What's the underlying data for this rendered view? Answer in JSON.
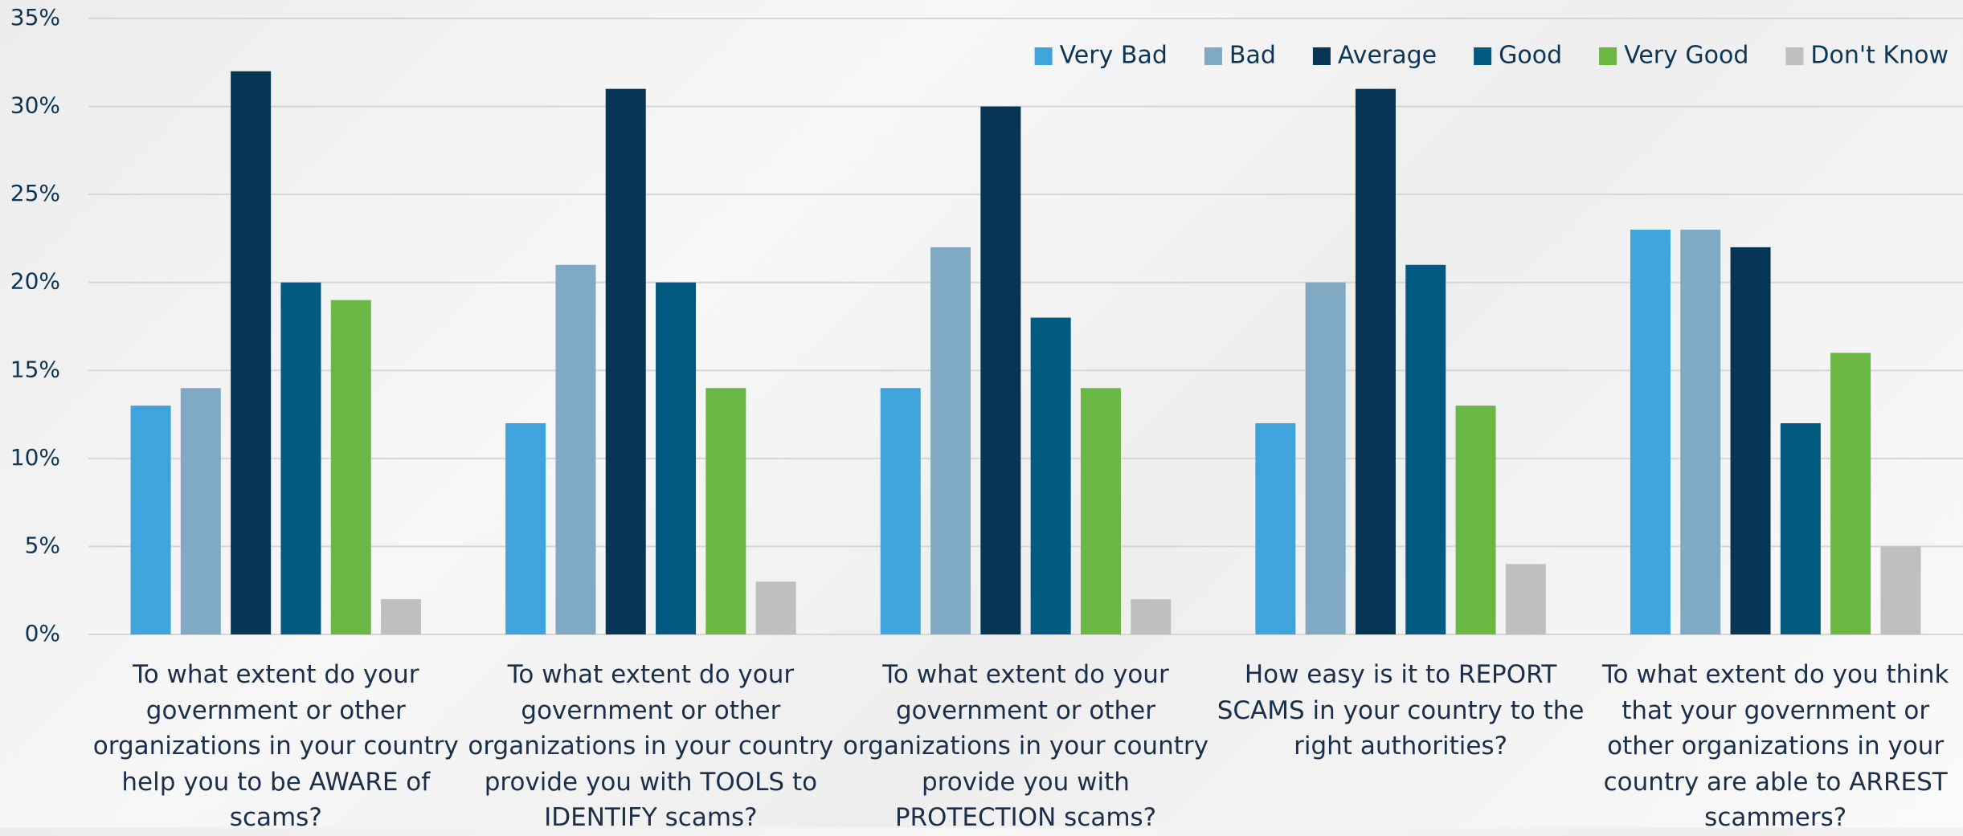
{
  "chart_data": {
    "type": "bar",
    "categories": [
      "To what extent do your government or other organizations in your country help you to be AWARE of scams?",
      "To what extent do your government or other organizations in your country provide you with TOOLS to IDENTIFY scams?",
      "To what extent do your government or other organizations in your country provide you with PROTECTION scams?",
      "How easy is it to REPORT SCAMS in your country to the right authorities?",
      "To what extent do you think that your government or other organizations in your country are able to ARREST scammers?"
    ],
    "series": [
      {
        "name": "Very Bad",
        "color": "#3fa3dc",
        "values": [
          13,
          12,
          14,
          12,
          23
        ]
      },
      {
        "name": "Bad",
        "color": "#80aac4",
        "values": [
          14,
          21,
          22,
          20,
          23
        ]
      },
      {
        "name": "Average",
        "color": "#063556",
        "values": [
          32,
          31,
          30,
          31,
          22
        ]
      },
      {
        "name": "Good",
        "color": "#025a80",
        "values": [
          20,
          20,
          18,
          21,
          12
        ]
      },
      {
        "name": "Very Good",
        "color": "#6ab744",
        "values": [
          19,
          14,
          14,
          13,
          16
        ]
      },
      {
        "name": "Don't Know",
        "color": "#bfbfbf",
        "values": [
          2,
          3,
          2,
          4,
          5
        ]
      }
    ],
    "ylim": [
      0,
      35
    ],
    "yticks": [
      {
        "value": 0,
        "label": "0%"
      },
      {
        "value": 5,
        "label": "5%"
      },
      {
        "value": 10,
        "label": "10%"
      },
      {
        "value": 15,
        "label": "15%"
      },
      {
        "value": 20,
        "label": "20%"
      },
      {
        "value": 25,
        "label": "25%"
      },
      {
        "value": 30,
        "label": "30%"
      },
      {
        "value": 35,
        "label": "35%"
      }
    ],
    "grid": true,
    "legend": "upper right"
  }
}
